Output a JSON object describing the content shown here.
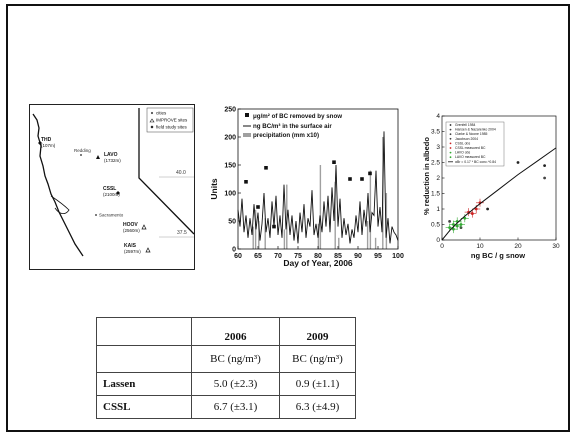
{
  "map": {
    "legend": [
      {
        "symbol": "dot",
        "label": "cities"
      },
      {
        "symbol": "triangle",
        "label": "IMPROVE sites"
      },
      {
        "symbol": "diamond",
        "label": "field study sites"
      }
    ],
    "sites": [
      {
        "name": "THD",
        "elev": "(107m)",
        "symbol": "diamond"
      },
      {
        "name": "Redding",
        "elev": "",
        "symbol": "dot"
      },
      {
        "name": "LAVO",
        "elev": "(1732m)",
        "symbol": "triangle"
      },
      {
        "name": "CSSL",
        "elev": "(2100m)",
        "symbol": "diamond"
      },
      {
        "name": "Sacramento",
        "elev": "",
        "symbol": "dot"
      },
      {
        "name": "HOOV",
        "elev": "(2560m)",
        "symbol": "triangle"
      },
      {
        "name": "KAIS",
        "elev": "(2597m)",
        "symbol": "triangle"
      }
    ],
    "lat_labels": [
      "40.0",
      "37.5"
    ]
  },
  "chart_data": [
    {
      "type": "line",
      "xlabel": "Day of Year, 2006",
      "ylabel": "Units",
      "xlim": [
        60,
        100
      ],
      "ylim": [
        0,
        250
      ],
      "xticks": [
        60,
        65,
        70,
        75,
        80,
        85,
        90,
        95,
        100
      ],
      "yticks": [
        0,
        50,
        100,
        150,
        200,
        250
      ],
      "legend_position": "top-left",
      "legend": [
        "μg/m² of BC removed by snow",
        "ng BC/m³ in the surface air",
        "precipitation (mm x10)"
      ],
      "series": [
        {
          "name": "ng BC/m³ in the surface air",
          "kind": "line",
          "color": "#111111",
          "x": [
            60,
            60.5,
            61,
            61.5,
            62,
            62.5,
            63,
            63.5,
            64,
            64.5,
            65,
            65.5,
            66,
            66.5,
            67,
            67.5,
            68,
            68.5,
            69,
            69.5,
            70,
            70.5,
            71,
            71.5,
            72,
            72.5,
            73,
            73.5,
            74,
            74.5,
            75,
            75.5,
            76,
            76.5,
            77,
            77.5,
            78,
            78.5,
            79,
            79.5,
            80,
            80.5,
            81,
            81.5,
            82,
            82.5,
            83,
            83.5,
            84,
            84.5,
            85,
            85.5,
            86,
            86.5,
            87,
            87.5,
            88,
            88.5,
            89,
            89.5,
            90,
            90.5,
            91,
            91.5,
            92,
            92.5,
            93,
            93.5,
            94,
            94.5,
            95,
            95.5,
            96,
            96.5,
            97,
            97.5,
            98,
            98.5,
            99,
            99.5,
            100
          ],
          "values": [
            70,
            40,
            90,
            30,
            60,
            20,
            55,
            25,
            80,
            35,
            65,
            15,
            45,
            100,
            30,
            55,
            20,
            85,
            40,
            95,
            25,
            60,
            20,
            115,
            35,
            70,
            25,
            60,
            15,
            50,
            10,
            65,
            30,
            80,
            20,
            55,
            40,
            105,
            25,
            45,
            20,
            60,
            30,
            85,
            40,
            95,
            30,
            110,
            50,
            150,
            40,
            90,
            20,
            55,
            25,
            45,
            10,
            35,
            20,
            60,
            30,
            85,
            25,
            70,
            40,
            100,
            30,
            65,
            60,
            140,
            40,
            75,
            30,
            210,
            20,
            55,
            10,
            40,
            30,
            25,
            15
          ]
        },
        {
          "name": "precipitation (mm x10)",
          "kind": "bar",
          "color": "#a0a0a0",
          "x": [
            63.8,
            64.4,
            65.2,
            66.8,
            71.6,
            72.2,
            80.1,
            80.6,
            84.3,
            85.2,
            92.4,
            93.1,
            94.4,
            96.2,
            97.1
          ],
          "values": [
            40,
            70,
            50,
            55,
            35,
            115,
            45,
            150,
            120,
            20,
            50,
            140,
            20,
            200,
            100
          ]
        },
        {
          "name": "μg/m² of BC removed by snow",
          "kind": "scatter",
          "color": "#111111",
          "x": [
            62,
            65,
            67,
            69,
            84,
            88,
            91,
            93
          ],
          "values": [
            120,
            75,
            145,
            40,
            155,
            125,
            125,
            135
          ]
        }
      ]
    },
    {
      "type": "scatter",
      "xlabel": "ng BC / g snow",
      "ylabel": "% reduction in albedo",
      "xlim": [
        0,
        30
      ],
      "ylim": [
        0,
        4
      ],
      "xticks": [
        0,
        10,
        20,
        30
      ],
      "yticks": [
        0,
        0.5,
        1,
        1.5,
        2,
        2.5,
        3,
        3.5,
        4
      ],
      "legend_position": "top-left",
      "legend": [
        "Grenfell 1984",
        "Hansen & Nazarenko 2004",
        "Clarke & Noone 1985",
        "Jacobson 2004",
        "CSSL obs",
        "CSSL measured BC",
        "LAVO obs",
        "LAVO measured BC",
        "αBr = 0.17 * BC conc.^0.84"
      ],
      "series": [
        {
          "name": "Grenfell 1984",
          "color": "#222222",
          "x": [
            20,
            27,
            12
          ],
          "values": [
            2.5,
            2.4,
            1.0
          ]
        },
        {
          "name": "Hansen & Nazarenko 2004",
          "color": "#444444",
          "x": [
            27
          ],
          "values": [
            2.0
          ]
        },
        {
          "name": "Clarke & Noone 1985",
          "color": "#444444",
          "x": [
            2,
            5
          ],
          "values": [
            0.6,
            0.4
          ]
        },
        {
          "name": "CSSL measured BC",
          "color": "#cc2222",
          "x": [
            7,
            8,
            9,
            10
          ],
          "values": [
            0.9,
            0.85,
            1.0,
            1.2
          ]
        },
        {
          "name": "LAVO measured BC",
          "color": "#33aa33",
          "x": [
            2,
            3,
            4,
            5,
            6,
            3,
            4
          ],
          "values": [
            0.4,
            0.5,
            0.6,
            0.5,
            0.7,
            0.35,
            0.45
          ]
        },
        {
          "name": "αBr = 0.17 * BC conc.^0.84",
          "color": "#111111",
          "kind": "curve",
          "x": [
            0,
            2,
            4,
            6,
            8,
            10,
            15,
            20,
            25,
            30
          ],
          "values": [
            0,
            0.3,
            0.55,
            0.77,
            0.97,
            1.17,
            1.64,
            2.11,
            2.54,
            2.97
          ]
        }
      ]
    }
  ],
  "table": {
    "columns": [
      "",
      "2006",
      "2009"
    ],
    "units": [
      "",
      "BC (ng/m³)",
      "BC (ng/m³)"
    ],
    "rows": [
      {
        "label": "Lassen",
        "v2006": "5.0 (±2.3)",
        "v2009": "0.9 (±1.1)"
      },
      {
        "label": "CSSL",
        "v2006": "6.7 (±3.1)",
        "v2009": "6.3 (±4.9)"
      }
    ]
  }
}
